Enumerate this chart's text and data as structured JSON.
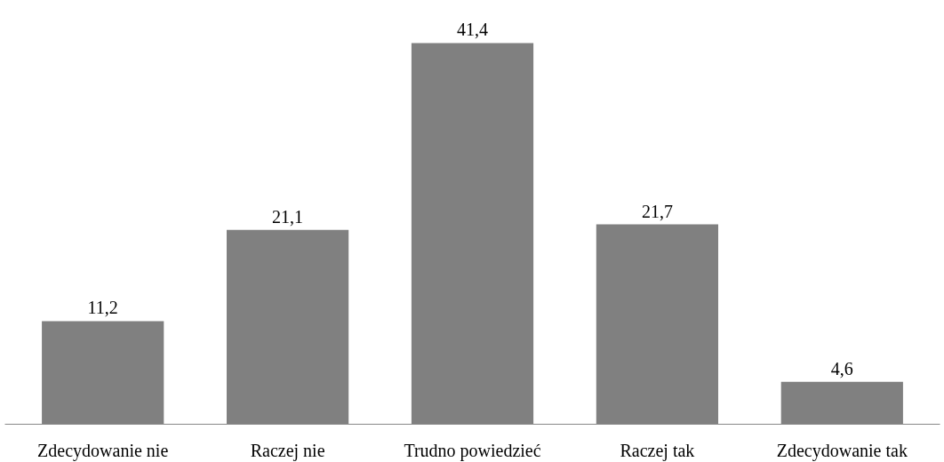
{
  "chart_data": {
    "type": "bar",
    "categories": [
      "Zdecydowanie nie",
      "Raczej nie",
      "Trudno powiedzieć",
      "Raczej tak",
      "Zdecydowanie tak"
    ],
    "values": [
      11.2,
      21.1,
      41.4,
      21.7,
      4.6
    ],
    "value_labels": [
      "11,2",
      "21,1",
      "41,4",
      "21,7",
      "4,6"
    ],
    "color": "#808080",
    "grid": false
  }
}
